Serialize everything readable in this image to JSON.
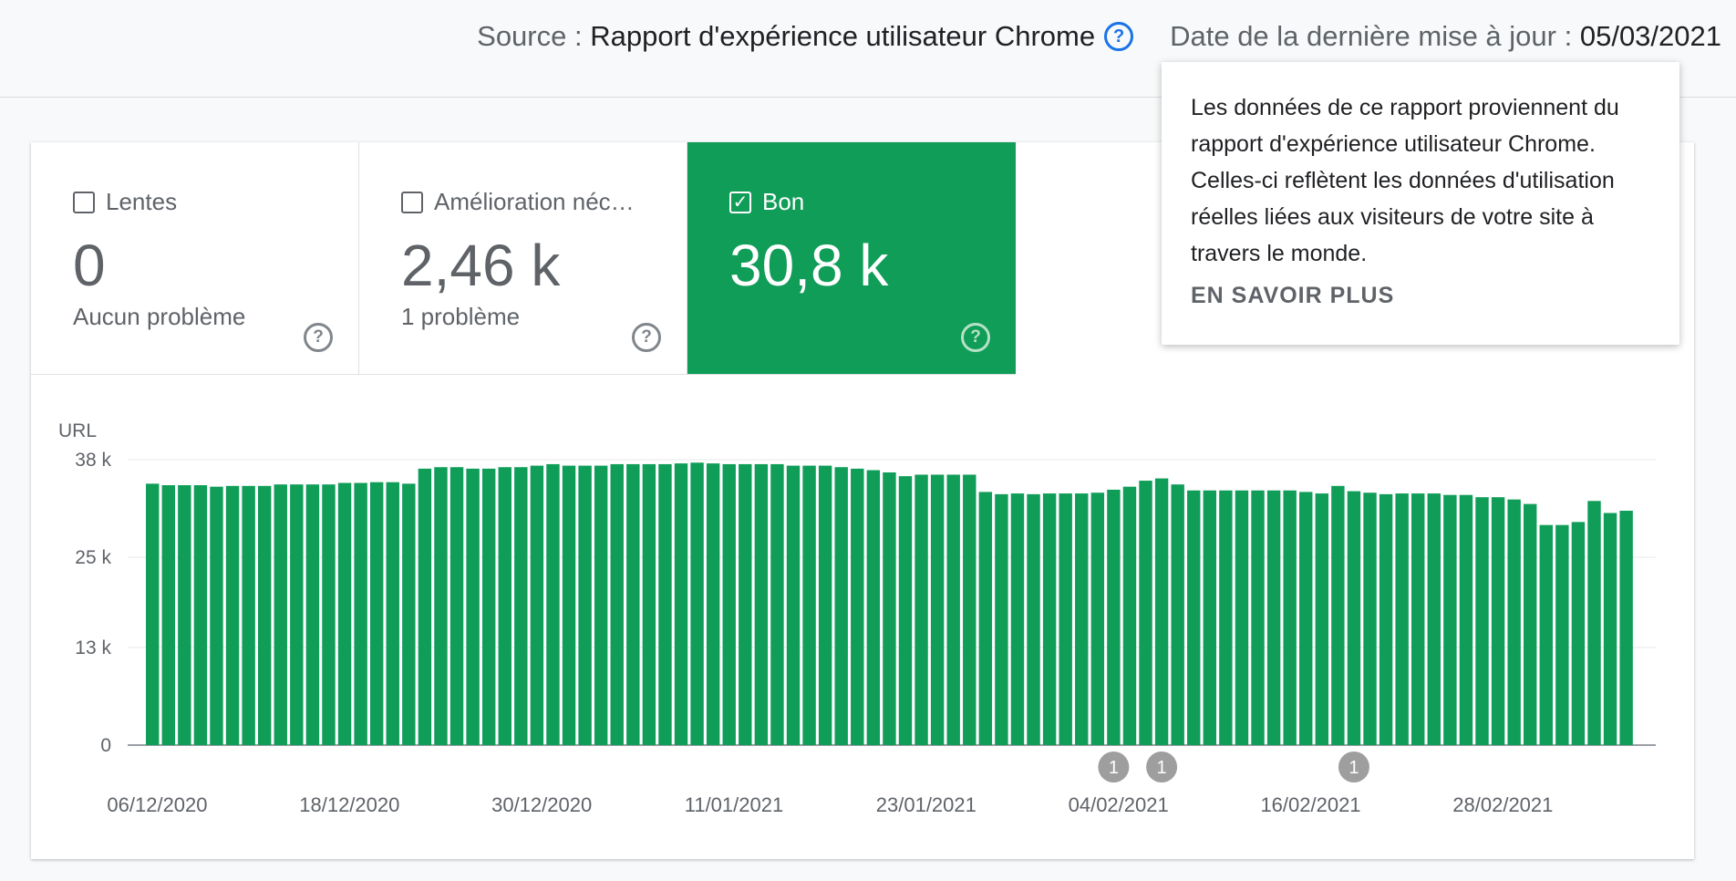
{
  "header": {
    "source_label": "Source :",
    "source_name": "Rapport d'expérience utilisateur Chrome",
    "help_icon": "help-circle-icon",
    "updated_label": "Date de la dernière mise à jour :",
    "updated_date": "05/03/2021"
  },
  "tiles": [
    {
      "label": "Lentes",
      "value": "0",
      "sub": "Aucun problème",
      "checked": false
    },
    {
      "label": "Amélioration néc…",
      "value": "2,46 k",
      "sub": "1 problème",
      "checked": false
    },
    {
      "label": "Bon",
      "value": "30,8 k",
      "sub": "",
      "checked": true
    }
  ],
  "tooltip": {
    "lines": [
      "Les données de ce rapport proviennent du",
      "rapport d'expérience utilisateur Chrome.",
      "Celles-ci reflètent les données d'utilisation",
      "réelles liées aux visiteurs de votre site à",
      "travers le monde."
    ],
    "link": "EN SAVOIR PLUS"
  },
  "colors": {
    "good": "#0f9d58",
    "link": "#1a73e8",
    "annotation": "#9e9e9e"
  },
  "chart_data": {
    "type": "bar",
    "ylabel": "URL",
    "ylim": [
      0,
      38000
    ],
    "yticks": [
      0,
      13000,
      25000,
      38000
    ],
    "ytick_labels": [
      "0",
      "13 k",
      "25 k",
      "38 k"
    ],
    "xtick_labels": [
      "06/12/2020",
      "18/12/2020",
      "30/12/2020",
      "11/01/2021",
      "23/01/2021",
      "04/02/2021",
      "16/02/2021",
      "28/02/2021"
    ],
    "series": [
      {
        "color": "#0f9d58",
        "values": [
          34800,
          34600,
          34600,
          34600,
          34400,
          34500,
          34500,
          34500,
          34700,
          34700,
          34700,
          34700,
          34900,
          34900,
          35000,
          35000,
          34800,
          36800,
          37000,
          37000,
          36800,
          36800,
          37000,
          37000,
          37200,
          37400,
          37200,
          37200,
          37200,
          37400,
          37400,
          37400,
          37400,
          37500,
          37600,
          37500,
          37400,
          37400,
          37400,
          37400,
          37200,
          37200,
          37200,
          37000,
          36800,
          36600,
          36300,
          35800,
          36000,
          36000,
          36000,
          36000,
          33700,
          33400,
          33500,
          33400,
          33500,
          33500,
          33500,
          33600,
          34000,
          34400,
          35200,
          35500,
          34700,
          33900,
          33900,
          33900,
          33900,
          33900,
          33900,
          33900,
          33700,
          33500,
          34500,
          33800,
          33600,
          33400,
          33500,
          33500,
          33500,
          33300,
          33300,
          33000,
          33000,
          32700,
          32100,
          29300,
          29300,
          29700,
          32500,
          30900,
          31200
        ]
      }
    ],
    "annotations": [
      {
        "label": "1",
        "index": 60
      },
      {
        "label": "1",
        "index": 63
      },
      {
        "label": "1",
        "index": 75
      }
    ],
    "grid": true
  }
}
